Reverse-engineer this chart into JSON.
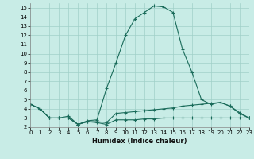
{
  "xlabel": "Humidex (Indice chaleur)",
  "bg_color": "#c8ece6",
  "grid_color": "#a0d0c8",
  "line_color": "#1a6b5a",
  "xlim": [
    0,
    23
  ],
  "ylim": [
    2,
    15.5
  ],
  "xticks": [
    0,
    1,
    2,
    3,
    4,
    5,
    6,
    7,
    8,
    9,
    10,
    11,
    12,
    13,
    14,
    15,
    16,
    17,
    18,
    19,
    20,
    21,
    22,
    23
  ],
  "yticks": [
    2,
    3,
    4,
    5,
    6,
    7,
    8,
    9,
    10,
    11,
    12,
    13,
    14,
    15
  ],
  "line1_x": [
    0,
    1,
    2,
    3,
    4,
    5,
    6,
    7,
    8,
    9,
    10,
    11,
    12,
    13,
    14,
    15,
    16,
    17,
    18,
    19,
    20,
    21,
    22,
    23
  ],
  "line1_y": [
    4.5,
    4.0,
    3.0,
    3.0,
    3.2,
    2.3,
    2.7,
    2.8,
    6.2,
    9.0,
    12.0,
    13.8,
    14.5,
    15.2,
    15.1,
    14.5,
    10.5,
    8.0,
    5.0,
    4.5,
    4.7,
    4.3,
    3.5,
    3.0
  ],
  "line2_x": [
    0,
    1,
    2,
    3,
    4,
    5,
    6,
    7,
    8,
    9,
    10,
    11,
    12,
    13,
    14,
    15,
    16,
    17,
    18,
    19,
    20,
    21,
    22,
    23
  ],
  "line2_y": [
    4.5,
    4.0,
    3.0,
    3.0,
    3.0,
    2.3,
    2.6,
    2.6,
    2.5,
    3.5,
    3.6,
    3.7,
    3.8,
    3.9,
    4.0,
    4.1,
    4.3,
    4.4,
    4.5,
    4.6,
    4.7,
    4.3,
    3.6,
    3.0
  ],
  "line3_x": [
    0,
    1,
    2,
    3,
    4,
    5,
    6,
    7,
    8,
    9,
    10,
    11,
    12,
    13,
    14,
    15,
    16,
    17,
    18,
    19,
    20,
    21,
    22,
    23
  ],
  "line3_y": [
    4.5,
    4.0,
    3.0,
    3.0,
    3.0,
    2.3,
    2.6,
    2.5,
    2.3,
    2.8,
    2.8,
    2.8,
    2.9,
    2.9,
    3.0,
    3.0,
    3.0,
    3.0,
    3.0,
    3.0,
    3.0,
    3.0,
    3.0,
    3.0
  ]
}
